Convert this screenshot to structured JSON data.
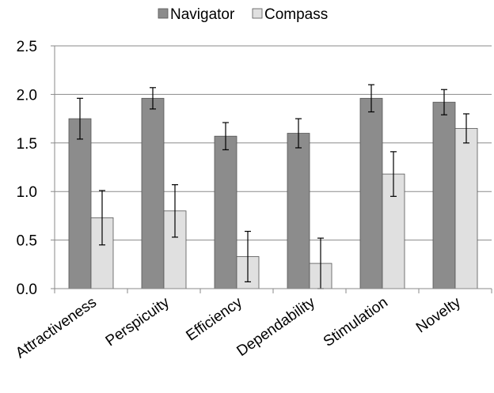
{
  "chart_data": {
    "type": "bar",
    "title": "",
    "xlabel": "",
    "ylabel": "",
    "categories": [
      "Attractiveness",
      "Perspicuity",
      "Efficiency",
      "Dependability",
      "Stimulation",
      "Novelty"
    ],
    "series": [
      {
        "name": "Navigator",
        "color": "#8c8c8c",
        "values": [
          1.75,
          1.96,
          1.57,
          1.6,
          1.96,
          1.92
        ],
        "error": [
          0.21,
          0.11,
          0.14,
          0.15,
          0.14,
          0.13
        ]
      },
      {
        "name": "Compass",
        "color": "#e0e0e0",
        "values": [
          0.73,
          0.8,
          0.33,
          0.26,
          1.18,
          1.65
        ],
        "error": [
          0.28,
          0.27,
          0.26,
          0.26,
          0.23,
          0.15
        ]
      }
    ],
    "ylim": [
      0,
      2.5
    ],
    "yticks": [
      "0.0",
      "0.5",
      "1.0",
      "1.5",
      "2.0",
      "2.5"
    ],
    "grid": true,
    "legend_position": "top-center"
  }
}
